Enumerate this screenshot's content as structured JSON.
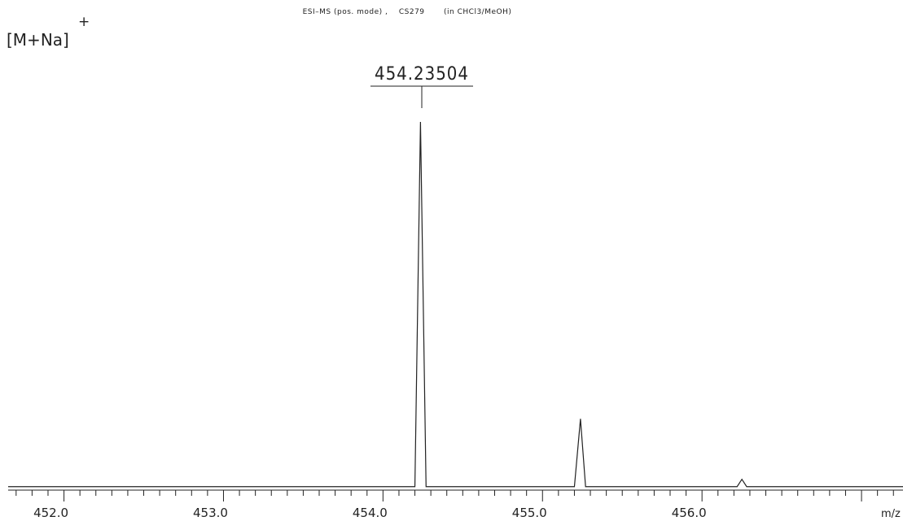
{
  "chart_data": {
    "type": "line",
    "title": "ESI–MS (pos. mode) ,    CS279       (in CHCl3/MeOH)",
    "annotation": "[M+Na]",
    "annotation_superscript": "+",
    "peak_label": "454.23504",
    "x_label": "m/z",
    "color": "#222222",
    "x": [
      451.65,
      454.2,
      454.235,
      454.27,
      455.2,
      455.238,
      455.27,
      456.22,
      456.25,
      456.28,
      457.26
    ],
    "values": [
      0.5,
      0.5,
      100,
      0.5,
      0.5,
      19,
      0.5,
      0.5,
      2.5,
      0.5,
      0.5
    ],
    "xlim": [
      451.65,
      457.26
    ],
    "ylim": [
      0,
      100
    ],
    "xticks": [
      {
        "value": 452,
        "label": "452.0"
      },
      {
        "value": 453,
        "label": "453.0"
      },
      {
        "value": 454,
        "label": "454.0"
      },
      {
        "value": 455,
        "label": "455.0"
      },
      {
        "value": 456,
        "label": "456.0"
      },
      {
        "value": 457,
        "label": ""
      }
    ],
    "xticks_minor": [
      451.7,
      451.8,
      451.9,
      452.1,
      452.2,
      452.3,
      452.4,
      452.5,
      452.6,
      452.7,
      452.8,
      452.9,
      453.1,
      453.2,
      453.3,
      453.4,
      453.5,
      453.6,
      453.7,
      453.8,
      453.9,
      454.1,
      454.2,
      454.3,
      454.4,
      454.5,
      454.6,
      454.7,
      454.8,
      454.9,
      455.1,
      455.2,
      455.3,
      455.4,
      455.5,
      455.6,
      455.7,
      455.8,
      455.9,
      456.1,
      456.2,
      456.3,
      456.4,
      456.5,
      456.6,
      456.7,
      456.8,
      456.9,
      457.1,
      457.2
    ]
  }
}
